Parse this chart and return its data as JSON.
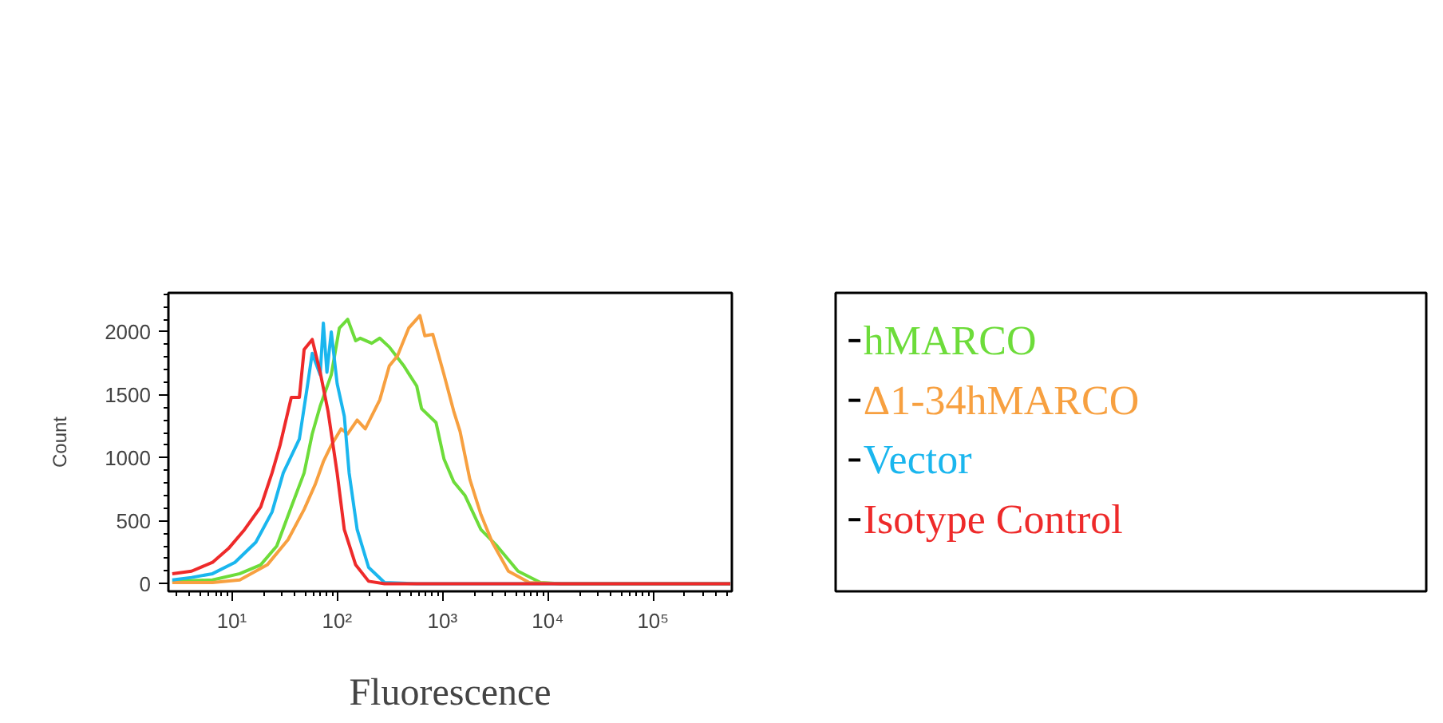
{
  "chart_data": {
    "type": "line",
    "xlabel": "Fluorescence",
    "ylabel": "Count",
    "log": "x",
    "grid": false,
    "legend": "right",
    "marker": "none",
    "line_style": "solid",
    "xlim": [
      2.5,
      560000
    ],
    "ylim": [
      -60,
      2310
    ],
    "xticks": [
      {
        "value": 10,
        "label": "10¹"
      },
      {
        "value": 100,
        "label": "10²"
      },
      {
        "value": 1000,
        "label": "10³"
      },
      {
        "value": 10000,
        "label": "10⁴"
      },
      {
        "value": 100000,
        "label": "10⁵"
      }
    ],
    "yticks": [
      0,
      500,
      1000,
      1500,
      2000
    ],
    "series": [
      {
        "name": "hMARCO",
        "color": "#6ddc3a",
        "x": [
          2.72,
          6.56,
          11.9,
          18.8,
          26.7,
          36.7,
          48.6,
          58,
          69,
          88,
          105,
          126,
          150,
          166,
          213,
          254,
          313,
          430,
          570,
          634,
          869,
          1035,
          1280,
          1640,
          2320,
          3300,
          5220,
          8530,
          13500,
          541000
        ],
        "values": [
          20,
          30,
          80,
          150,
          300,
          610,
          880,
          1190,
          1410,
          1660,
          2030,
          2100,
          1930,
          1950,
          1910,
          1950,
          1880,
          1730,
          1570,
          1390,
          1280,
          990,
          810,
          700,
          430,
          300,
          100,
          10,
          0,
          0
        ]
      },
      {
        "name": "Δ1-34hMARCO",
        "color": "#f7a040",
        "x": [
          2.72,
          6.56,
          11.9,
          21.7,
          34.2,
          48.6,
          62,
          74,
          88,
          109,
          126,
          155,
          185,
          254,
          313,
          374,
          478,
          611,
          680,
          810,
          1035,
          1280,
          1470,
          1820,
          2320,
          2970,
          4230,
          6670,
          13500,
          541000
        ],
        "values": [
          10,
          10,
          30,
          150,
          350,
          590,
          790,
          970,
          1100,
          1230,
          1190,
          1300,
          1230,
          1460,
          1730,
          1810,
          2030,
          2130,
          1970,
          1980,
          1660,
          1370,
          1210,
          830,
          550,
          330,
          100,
          10,
          0,
          0
        ]
      },
      {
        "name": "Vector",
        "color": "#1ab6ee",
        "x": [
          2.72,
          4.15,
          6.56,
          10.7,
          16.9,
          24.1,
          30.8,
          43.8,
          52.2,
          58,
          69,
          74,
          80,
          88,
          100,
          117,
          130,
          155,
          199,
          282,
          570,
          541000
        ],
        "values": [
          30,
          50,
          80,
          170,
          330,
          570,
          880,
          1150,
          1570,
          1830,
          1660,
          2070,
          1680,
          2000,
          1590,
          1330,
          880,
          430,
          130,
          10,
          0,
          0
        ]
      },
      {
        "name": "Isotype Control",
        "color": "#ee2a2a",
        "x": [
          2.72,
          4.15,
          6.56,
          9.3,
          13.2,
          18.8,
          24.1,
          28.7,
          36.7,
          43.8,
          48.6,
          58,
          69,
          82,
          100,
          117,
          150,
          199,
          282,
          541000
        ],
        "values": [
          80,
          100,
          170,
          280,
          430,
          610,
          880,
          1100,
          1480,
          1480,
          1860,
          1940,
          1680,
          1370,
          880,
          430,
          150,
          20,
          0,
          0
        ]
      }
    ]
  }
}
